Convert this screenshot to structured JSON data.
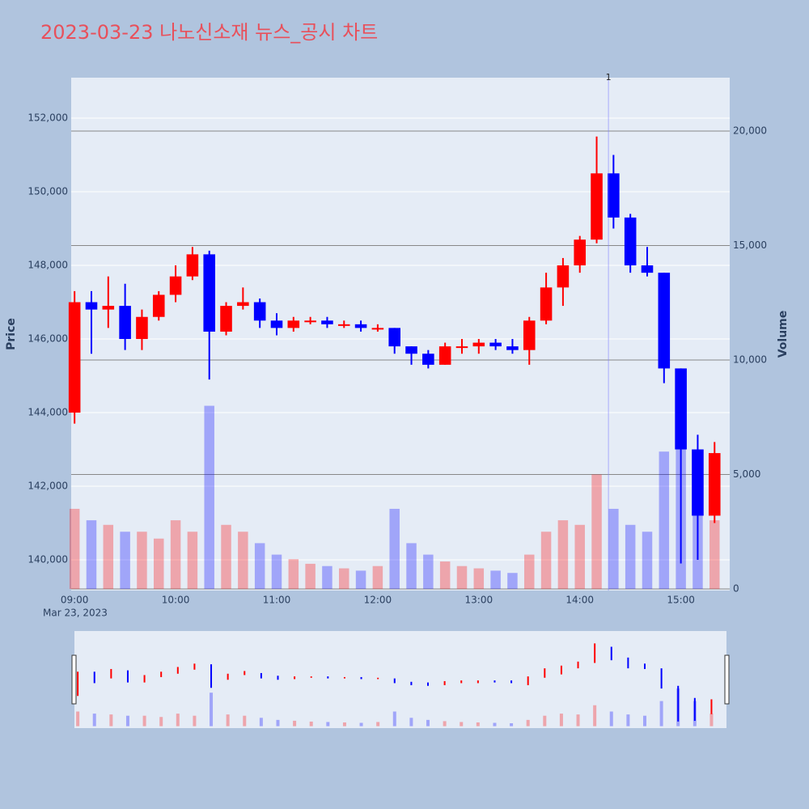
{
  "chart_data": {
    "type": "candlestick",
    "title": "2023-03-23 나노신소재 뉴스_공시 차트",
    "y_label": "Price",
    "y2_label": "Volume",
    "x_date_label": "Mar 23, 2023",
    "up_color": "#ff0000",
    "down_color": "#0000ff",
    "x": [
      "09:00",
      "09:10",
      "09:20",
      "09:30",
      "09:40",
      "09:50",
      "10:00",
      "10:10",
      "10:20",
      "10:30",
      "10:40",
      "10:50",
      "11:00",
      "11:10",
      "11:20",
      "11:30",
      "11:40",
      "11:50",
      "12:00",
      "12:10",
      "12:20",
      "12:30",
      "12:40",
      "12:50",
      "13:00",
      "13:10",
      "13:20",
      "13:30",
      "13:40",
      "13:50",
      "14:00",
      "14:10",
      "14:20",
      "14:30",
      "14:40",
      "14:50",
      "15:00",
      "15:10",
      "15:20"
    ],
    "open": [
      144000,
      147000,
      146800,
      146900,
      146000,
      146600,
      147200,
      147700,
      148300,
      146200,
      146900,
      147000,
      146500,
      146300,
      146500,
      146500,
      146400,
      146400,
      146300,
      146300,
      145800,
      145600,
      145300,
      145800,
      145800,
      145900,
      145800,
      145700,
      146500,
      147400,
      148000,
      148700,
      150500,
      149300,
      148000,
      147800,
      145200,
      143000,
      141200
    ],
    "high": [
      147300,
      147300,
      147700,
      147500,
      146800,
      147300,
      148000,
      148500,
      148400,
      147000,
      147400,
      147100,
      146700,
      146600,
      146600,
      146600,
      146500,
      146500,
      146400,
      146300,
      145800,
      145700,
      145900,
      146000,
      146000,
      146000,
      146000,
      146600,
      147800,
      148200,
      148800,
      151500,
      151000,
      149400,
      148500,
      147800,
      145200,
      143400,
      143200
    ],
    "low": [
      143700,
      145600,
      146300,
      145700,
      145700,
      146500,
      147000,
      147600,
      144900,
      146100,
      146800,
      146300,
      146100,
      146200,
      146400,
      146300,
      146300,
      146200,
      146200,
      145600,
      145300,
      145200,
      145300,
      145600,
      145600,
      145700,
      145600,
      145300,
      146400,
      146900,
      147800,
      148600,
      149000,
      147800,
      147700,
      144800,
      139900,
      140000,
      141000
    ],
    "close": [
      147000,
      146800,
      146900,
      146000,
      146600,
      147200,
      147700,
      148300,
      146200,
      146900,
      147000,
      146500,
      146300,
      146500,
      146500,
      146400,
      146400,
      146300,
      146300,
      145800,
      145600,
      145300,
      145800,
      145800,
      145900,
      145800,
      145700,
      146500,
      147400,
      148000,
      148700,
      150500,
      149300,
      148000,
      147800,
      145200,
      143000,
      141200,
      142900
    ],
    "volume": [
      3500,
      3000,
      2800,
      2500,
      2500,
      2200,
      3000,
      2500,
      8000,
      2800,
      2500,
      2000,
      1500,
      1300,
      1100,
      1000,
      900,
      800,
      1000,
      3500,
      2000,
      1500,
      1200,
      1000,
      900,
      800,
      700,
      1500,
      2500,
      3000,
      2800,
      5000,
      3500,
      2800,
      2500,
      6000,
      9000,
      6000,
      3000
    ],
    "xlim": [
      "08:58",
      "15:29"
    ],
    "xticks": [
      "09:00",
      "10:00",
      "11:00",
      "12:00",
      "13:00",
      "14:00",
      "15:00"
    ],
    "ylim": [
      139165,
      153100
    ],
    "yticks": [
      {
        "value": 140000,
        "label": "140,000"
      },
      {
        "value": 142000,
        "label": "142,000"
      },
      {
        "value": 144000,
        "label": "144,000"
      },
      {
        "value": 146000,
        "label": "146,000"
      },
      {
        "value": 148000,
        "label": "148,000"
      },
      {
        "value": 150000,
        "label": "150,000"
      },
      {
        "value": 152000,
        "label": "152,000"
      }
    ],
    "y2lim": [
      -70,
      22330
    ],
    "y2ticks": [
      0,
      {
        "value": 5000,
        "label": "5,000"
      },
      {
        "value": 10000,
        "label": "10,000"
      },
      {
        "value": 15000,
        "label": "15,000"
      },
      {
        "value": 20000,
        "label": "20,000"
      }
    ],
    "annotations": [
      {
        "x": "14:17",
        "text": "1"
      }
    ]
  }
}
